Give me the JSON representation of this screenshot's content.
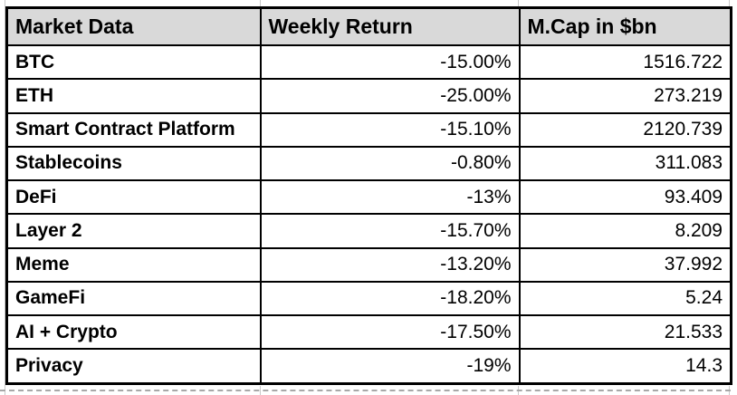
{
  "table": {
    "columns": [
      "Market Data",
      "Weekly Return",
      "M.Cap in $bn"
    ],
    "rows": [
      {
        "label": "BTC",
        "weekly_return": "-15.00%",
        "mcap": "1516.722"
      },
      {
        "label": "ETH",
        "weekly_return": "-25.00%",
        "mcap": "273.219"
      },
      {
        "label": "Smart Contract Platform",
        "weekly_return": "-15.10%",
        "mcap": "2120.739"
      },
      {
        "label": "Stablecoins",
        "weekly_return": "-0.80%",
        "mcap": "311.083"
      },
      {
        "label": "DeFi",
        "weekly_return": "-13%",
        "mcap": "93.409"
      },
      {
        "label": "Layer 2",
        "weekly_return": "-15.70%",
        "mcap": "8.209"
      },
      {
        "label": "Meme",
        "weekly_return": "-13.20%",
        "mcap": "37.992"
      },
      {
        "label": "GameFi",
        "weekly_return": "-18.20%",
        "mcap": "5.24"
      },
      {
        "label": "AI + Crypto",
        "weekly_return": "-17.50%",
        "mcap": "21.533"
      },
      {
        "label": "Privacy",
        "weekly_return": "-19%",
        "mcap": "14.3"
      }
    ]
  },
  "colors": {
    "negative_text": "#FF0000",
    "header_background": "#D9D9D9",
    "table_border": "#000000",
    "sheet_gridline": "#C9C9C9"
  }
}
